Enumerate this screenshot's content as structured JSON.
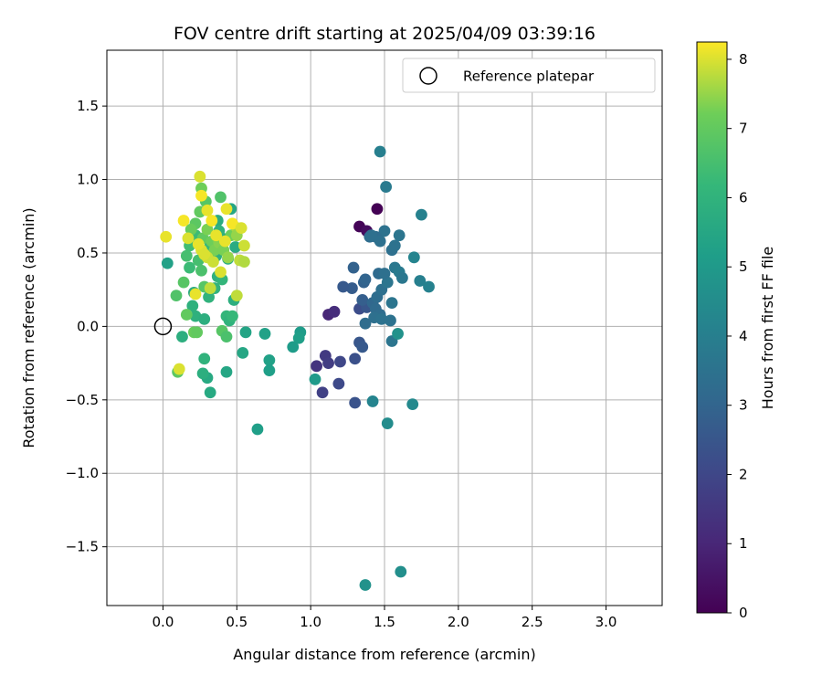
{
  "chart_data": {
    "type": "scatter",
    "title": "FOV centre drift starting at 2025/04/09 03:39:16",
    "xlabel": "Angular distance from reference (arcmin)",
    "ylabel": "Rotation from reference (arcmin)",
    "xlim": [
      -0.38,
      3.38
    ],
    "ylim": [
      -1.9,
      1.88
    ],
    "xticks": [
      0.0,
      0.5,
      1.0,
      1.5,
      2.0,
      2.5,
      3.0
    ],
    "xtick_labels": [
      "0.0",
      "0.5",
      "1.0",
      "1.5",
      "2.0",
      "2.5",
      "3.0"
    ],
    "yticks": [
      -1.5,
      -1.0,
      -0.5,
      0.0,
      0.5,
      1.0,
      1.5
    ],
    "ytick_labels": [
      "−1.5",
      "−1.0",
      "−0.5",
      "0.0",
      "0.5",
      "1.0",
      "1.5"
    ],
    "grid": true,
    "legend": {
      "placement": "top-right",
      "entries": [
        "Reference platepar"
      ]
    },
    "reference_point": {
      "x": 0.0,
      "y": 0.0
    },
    "colorbar": {
      "label": "Hours from first FF file",
      "colormap": "viridis",
      "range": [
        0,
        8.25
      ],
      "ticks": [
        0,
        1,
        2,
        3,
        4,
        5,
        6,
        7,
        8
      ],
      "tick_labels": [
        "0",
        "1",
        "2",
        "3",
        "4",
        "5",
        "6",
        "7",
        "8"
      ]
    },
    "points": [
      {
        "x": 1.45,
        "y": 0.8,
        "c": 0.0
      },
      {
        "x": 1.33,
        "y": 0.68,
        "c": 0.1
      },
      {
        "x": 1.38,
        "y": 0.65,
        "c": 0.3
      },
      {
        "x": 1.12,
        "y": 0.08,
        "c": 1.0
      },
      {
        "x": 1.16,
        "y": 0.1,
        "c": 1.2
      },
      {
        "x": 1.04,
        "y": -0.27,
        "c": 1.4
      },
      {
        "x": 1.1,
        "y": -0.2,
        "c": 1.6
      },
      {
        "x": 1.08,
        "y": -0.45,
        "c": 1.8
      },
      {
        "x": 1.12,
        "y": -0.25,
        "c": 1.7
      },
      {
        "x": 1.2,
        "y": -0.24,
        "c": 2.0
      },
      {
        "x": 1.19,
        "y": -0.39,
        "c": 2.1
      },
      {
        "x": 1.3,
        "y": -0.52,
        "c": 2.4
      },
      {
        "x": 1.3,
        "y": -0.22,
        "c": 2.3
      },
      {
        "x": 1.33,
        "y": -0.11,
        "c": 2.5
      },
      {
        "x": 1.35,
        "y": -0.14,
        "c": 2.6
      },
      {
        "x": 1.33,
        "y": 0.12,
        "c": 2.2
      },
      {
        "x": 1.38,
        "y": 0.13,
        "c": 2.5
      },
      {
        "x": 1.28,
        "y": 0.26,
        "c": 2.7
      },
      {
        "x": 1.22,
        "y": 0.27,
        "c": 2.6
      },
      {
        "x": 1.35,
        "y": 0.18,
        "c": 2.8
      },
      {
        "x": 1.36,
        "y": 0.3,
        "c": 2.9
      },
      {
        "x": 1.37,
        "y": 0.32,
        "c": 3.0
      },
      {
        "x": 1.29,
        "y": 0.4,
        "c": 2.9
      },
      {
        "x": 1.42,
        "y": 0.16,
        "c": 3.1
      },
      {
        "x": 1.44,
        "y": 0.12,
        "c": 3.2
      },
      {
        "x": 1.47,
        "y": 0.08,
        "c": 3.3
      },
      {
        "x": 1.45,
        "y": 0.2,
        "c": 3.3
      },
      {
        "x": 1.48,
        "y": 0.25,
        "c": 3.4
      },
      {
        "x": 1.43,
        "y": 0.06,
        "c": 3.4
      },
      {
        "x": 1.48,
        "y": 0.05,
        "c": 3.5
      },
      {
        "x": 1.54,
        "y": 0.04,
        "c": 3.5
      },
      {
        "x": 1.37,
        "y": 0.02,
        "c": 3.3
      },
      {
        "x": 1.55,
        "y": 0.16,
        "c": 3.6
      },
      {
        "x": 1.52,
        "y": 0.3,
        "c": 3.6
      },
      {
        "x": 1.46,
        "y": 0.36,
        "c": 3.2
      },
      {
        "x": 1.5,
        "y": 0.36,
        "c": 3.4
      },
      {
        "x": 1.55,
        "y": 0.52,
        "c": 3.4
      },
      {
        "x": 1.57,
        "y": 0.55,
        "c": 3.5
      },
      {
        "x": 1.57,
        "y": 0.4,
        "c": 3.7
      },
      {
        "x": 1.6,
        "y": 0.37,
        "c": 3.8
      },
      {
        "x": 1.62,
        "y": 0.33,
        "c": 3.7
      },
      {
        "x": 1.6,
        "y": 0.62,
        "c": 3.6
      },
      {
        "x": 1.5,
        "y": 0.65,
        "c": 3.5
      },
      {
        "x": 1.4,
        "y": 0.61,
        "c": 3.3
      },
      {
        "x": 1.44,
        "y": 0.61,
        "c": 3.3
      },
      {
        "x": 1.47,
        "y": 0.58,
        "c": 3.4
      },
      {
        "x": 1.41,
        "y": 0.62,
        "c": 3.4
      },
      {
        "x": 1.51,
        "y": 0.95,
        "c": 3.8
      },
      {
        "x": 1.47,
        "y": 1.19,
        "c": 4.0
      },
      {
        "x": 1.55,
        "y": -0.1,
        "c": 3.6
      },
      {
        "x": 1.75,
        "y": 0.76,
        "c": 4.1
      },
      {
        "x": 1.7,
        "y": 0.47,
        "c": 4.2
      },
      {
        "x": 1.74,
        "y": 0.31,
        "c": 4.0
      },
      {
        "x": 1.8,
        "y": 0.27,
        "c": 4.1
      },
      {
        "x": 1.69,
        "y": -0.53,
        "c": 4.4
      },
      {
        "x": 1.59,
        "y": -0.05,
        "c": 4.7
      },
      {
        "x": 1.42,
        "y": -0.51,
        "c": 4.2
      },
      {
        "x": 1.52,
        "y": -0.66,
        "c": 4.5
      },
      {
        "x": 1.37,
        "y": -1.76,
        "c": 4.7
      },
      {
        "x": 1.61,
        "y": -1.67,
        "c": 4.6
      },
      {
        "x": 1.03,
        "y": -0.36,
        "c": 5.0
      },
      {
        "x": 0.93,
        "y": -0.04,
        "c": 5.1
      },
      {
        "x": 0.92,
        "y": -0.08,
        "c": 5.2
      },
      {
        "x": 0.88,
        "y": -0.14,
        "c": 5.1
      },
      {
        "x": 0.72,
        "y": -0.23,
        "c": 5.3
      },
      {
        "x": 0.72,
        "y": -0.3,
        "c": 5.2
      },
      {
        "x": 0.69,
        "y": -0.05,
        "c": 5.3
      },
      {
        "x": 0.64,
        "y": -0.7,
        "c": 5.2
      },
      {
        "x": 0.56,
        "y": -0.04,
        "c": 5.4
      },
      {
        "x": 0.54,
        "y": -0.18,
        "c": 5.5
      },
      {
        "x": 0.43,
        "y": -0.31,
        "c": 5.5
      },
      {
        "x": 0.32,
        "y": -0.45,
        "c": 5.6
      },
      {
        "x": 0.3,
        "y": -0.35,
        "c": 5.6
      },
      {
        "x": 0.28,
        "y": -0.22,
        "c": 6.0
      },
      {
        "x": 0.27,
        "y": -0.32,
        "c": 5.8
      },
      {
        "x": 0.03,
        "y": 0.43,
        "c": 5.3
      },
      {
        "x": 0.13,
        "y": -0.07,
        "c": 5.8
      },
      {
        "x": 0.2,
        "y": 0.14,
        "c": 5.9
      },
      {
        "x": 0.21,
        "y": 0.23,
        "c": 5.7
      },
      {
        "x": 0.22,
        "y": 0.07,
        "c": 5.9
      },
      {
        "x": 0.28,
        "y": 0.05,
        "c": 5.8
      },
      {
        "x": 0.31,
        "y": 0.2,
        "c": 6.0
      },
      {
        "x": 0.35,
        "y": 0.26,
        "c": 6.0
      },
      {
        "x": 0.37,
        "y": 0.34,
        "c": 5.9
      },
      {
        "x": 0.4,
        "y": 0.32,
        "c": 6.1
      },
      {
        "x": 0.43,
        "y": 0.07,
        "c": 6.1
      },
      {
        "x": 0.45,
        "y": 0.04,
        "c": 6.0
      },
      {
        "x": 0.47,
        "y": 0.07,
        "c": 6.2
      },
      {
        "x": 0.48,
        "y": 0.18,
        "c": 5.8
      },
      {
        "x": 0.44,
        "y": 0.46,
        "c": 5.8
      },
      {
        "x": 0.49,
        "y": 0.54,
        "c": 5.7
      },
      {
        "x": 0.46,
        "y": 0.8,
        "c": 5.5
      },
      {
        "x": 0.4,
        "y": 0.6,
        "c": 5.6
      },
      {
        "x": 0.37,
        "y": 0.72,
        "c": 5.7
      },
      {
        "x": 0.36,
        "y": 0.48,
        "c": 5.9
      },
      {
        "x": 0.38,
        "y": 0.65,
        "c": 6.0
      },
      {
        "x": 0.32,
        "y": 0.55,
        "c": 6.2
      },
      {
        "x": 0.22,
        "y": 0.62,
        "c": 6.3
      },
      {
        "x": 0.18,
        "y": 0.55,
        "c": 6.4
      },
      {
        "x": 0.16,
        "y": 0.48,
        "c": 6.5
      },
      {
        "x": 0.18,
        "y": 0.4,
        "c": 6.3
      },
      {
        "x": 0.24,
        "y": 0.45,
        "c": 6.5
      },
      {
        "x": 0.26,
        "y": 0.38,
        "c": 6.6
      },
      {
        "x": 0.28,
        "y": 0.27,
        "c": 6.8
      },
      {
        "x": 0.09,
        "y": 0.21,
        "c": 6.7
      },
      {
        "x": 0.14,
        "y": 0.3,
        "c": 6.8
      },
      {
        "x": 0.16,
        "y": 0.08,
        "c": 7.0
      },
      {
        "x": 0.21,
        "y": -0.04,
        "c": 7.1
      },
      {
        "x": 0.23,
        "y": -0.04,
        "c": 7.0
      },
      {
        "x": 0.1,
        "y": -0.31,
        "c": 6.9
      },
      {
        "x": 0.4,
        "y": -0.03,
        "c": 6.8
      },
      {
        "x": 0.43,
        "y": -0.07,
        "c": 6.6
      },
      {
        "x": 0.39,
        "y": 0.88,
        "c": 6.7
      },
      {
        "x": 0.29,
        "y": 0.85,
        "c": 6.8
      },
      {
        "x": 0.26,
        "y": 0.94,
        "c": 7.2
      },
      {
        "x": 0.25,
        "y": 0.78,
        "c": 7.0
      },
      {
        "x": 0.22,
        "y": 0.7,
        "c": 6.9
      },
      {
        "x": 0.19,
        "y": 0.66,
        "c": 7.1
      },
      {
        "x": 0.27,
        "y": 0.6,
        "c": 7.0
      },
      {
        "x": 0.3,
        "y": 0.66,
        "c": 7.3
      },
      {
        "x": 0.33,
        "y": 0.58,
        "c": 7.2
      },
      {
        "x": 0.35,
        "y": 0.52,
        "c": 7.3
      },
      {
        "x": 0.38,
        "y": 0.57,
        "c": 7.4
      },
      {
        "x": 0.41,
        "y": 0.52,
        "c": 7.3
      },
      {
        "x": 0.44,
        "y": 0.47,
        "c": 7.5
      },
      {
        "x": 0.46,
        "y": 0.62,
        "c": 7.2
      },
      {
        "x": 0.5,
        "y": 0.67,
        "c": 7.6
      },
      {
        "x": 0.5,
        "y": 0.62,
        "c": 7.5
      },
      {
        "x": 0.52,
        "y": 0.45,
        "c": 7.8
      },
      {
        "x": 0.55,
        "y": 0.55,
        "c": 7.9
      },
      {
        "x": 0.55,
        "y": 0.44,
        "c": 7.7
      },
      {
        "x": 0.5,
        "y": 0.21,
        "c": 7.8
      },
      {
        "x": 0.32,
        "y": 0.26,
        "c": 7.8
      },
      {
        "x": 0.3,
        "y": 0.47,
        "c": 7.9
      },
      {
        "x": 0.26,
        "y": 0.52,
        "c": 8.0
      },
      {
        "x": 0.24,
        "y": 0.56,
        "c": 8.1
      },
      {
        "x": 0.28,
        "y": 0.49,
        "c": 8.0
      },
      {
        "x": 0.34,
        "y": 0.44,
        "c": 7.9
      },
      {
        "x": 0.36,
        "y": 0.62,
        "c": 8.1
      },
      {
        "x": 0.39,
        "y": 0.37,
        "c": 8.0
      },
      {
        "x": 0.33,
        "y": 0.72,
        "c": 8.2
      },
      {
        "x": 0.3,
        "y": 0.79,
        "c": 8.1
      },
      {
        "x": 0.26,
        "y": 0.89,
        "c": 8.2
      },
      {
        "x": 0.25,
        "y": 1.02,
        "c": 8.0
      },
      {
        "x": 0.43,
        "y": 0.8,
        "c": 8.1
      },
      {
        "x": 0.47,
        "y": 0.7,
        "c": 8.2
      },
      {
        "x": 0.53,
        "y": 0.67,
        "c": 8.0
      },
      {
        "x": 0.42,
        "y": 0.58,
        "c": 8.1
      },
      {
        "x": 0.14,
        "y": 0.72,
        "c": 8.2
      },
      {
        "x": 0.17,
        "y": 0.6,
        "c": 8.0
      },
      {
        "x": 0.02,
        "y": 0.61,
        "c": 8.1
      },
      {
        "x": 0.11,
        "y": -0.29,
        "c": 8.0
      },
      {
        "x": 0.22,
        "y": 0.22,
        "c": 8.1
      }
    ]
  }
}
